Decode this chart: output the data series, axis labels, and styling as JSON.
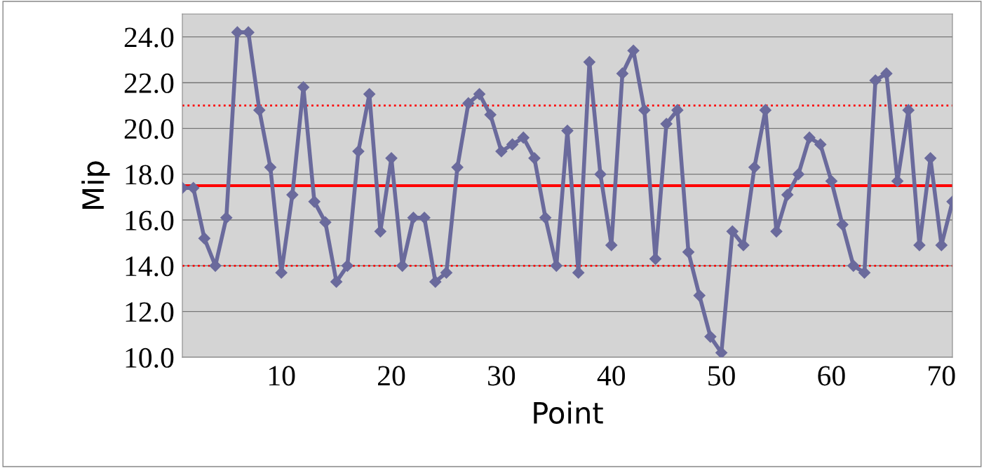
{
  "chart_data": {
    "type": "line",
    "xlabel": "Point",
    "ylabel": "Mip",
    "x": [
      1,
      2,
      3,
      4,
      5,
      6,
      7,
      8,
      9,
      10,
      11,
      12,
      13,
      14,
      15,
      16,
      17,
      18,
      19,
      20,
      21,
      22,
      23,
      24,
      25,
      26,
      27,
      28,
      29,
      30,
      31,
      32,
      33,
      34,
      35,
      36,
      37,
      38,
      39,
      40,
      41,
      42,
      43,
      44,
      45,
      46,
      47,
      48,
      49,
      50,
      51,
      52,
      53,
      54,
      55,
      56,
      57,
      58,
      59,
      60,
      61,
      62,
      63,
      64,
      65,
      66,
      67,
      68,
      69,
      70,
      71
    ],
    "series": [
      {
        "color": "#6a6a9c",
        "values": [
          17.4,
          17.4,
          15.2,
          14.0,
          16.1,
          24.2,
          24.2,
          20.8,
          18.3,
          13.7,
          17.1,
          21.8,
          16.8,
          15.9,
          13.3,
          14.0,
          19.0,
          21.5,
          15.5,
          18.7,
          14.0,
          16.1,
          16.1,
          13.3,
          13.7,
          18.3,
          21.1,
          21.5,
          20.6,
          19.0,
          19.3,
          19.6,
          18.7,
          16.1,
          14.0,
          19.9,
          13.7,
          22.9,
          18.0,
          14.9,
          22.4,
          23.4,
          20.8,
          14.3,
          20.2,
          20.8,
          14.6,
          12.7,
          10.9,
          10.2,
          15.5,
          14.9,
          18.3,
          20.8,
          15.5,
          17.1,
          18.0,
          19.6,
          19.3,
          17.7,
          15.8,
          14.0,
          13.7,
          22.1,
          22.4,
          17.7,
          20.8,
          14.9,
          18.7,
          14.9,
          16.8
        ]
      }
    ],
    "xlim": [
      1,
      71
    ],
    "xticks": [
      10,
      20,
      30,
      40,
      50,
      60,
      70
    ],
    "ylim": [
      10,
      25
    ],
    "yticks": [
      {
        "value": 10,
        "label": "10.0"
      },
      {
        "value": 12,
        "label": "12.0"
      },
      {
        "value": 14,
        "label": "14.0"
      },
      {
        "value": 16,
        "label": "16.0"
      },
      {
        "value": 18,
        "label": "18.0"
      },
      {
        "value": 20,
        "label": "20.0"
      },
      {
        "value": 22,
        "label": "22.0"
      },
      {
        "value": 24,
        "label": "24.0"
      }
    ],
    "ref_lines": [
      {
        "axis": "y",
        "value": 17.5,
        "color": "#ff0000",
        "line_style": "solid"
      },
      {
        "axis": "y",
        "value": 21.0,
        "color": "#ff0000",
        "line_style": "dotted"
      },
      {
        "axis": "y",
        "value": 14.0,
        "color": "#ff0000",
        "line_style": "dotted"
      }
    ],
    "grid": "y",
    "marker": "diamond",
    "line_style": "solid",
    "legend": false
  }
}
